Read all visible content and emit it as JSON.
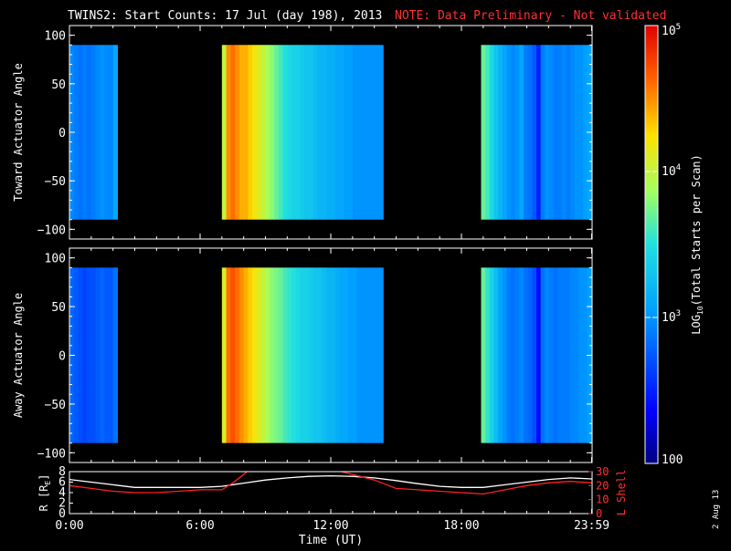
{
  "title": "TWINS2: Start Counts: 17 Jul (day 198), 2013",
  "note": "NOTE: Data Preliminary - Not validated",
  "date_stamp": "2 Aug 13",
  "colorbar": {
    "label_prefix": "LOG",
    "label_sub": "10",
    "label_suffix": "(Total Starts per Scan)",
    "tick_labels": [
      "10^5",
      "10^4",
      "10^3",
      "100"
    ],
    "tick_base": [
      "10",
      "10",
      "10",
      "100"
    ],
    "tick_exp": [
      "5",
      "4",
      "3",
      ""
    ],
    "log_min": 2,
    "log_max": 5
  },
  "colors": {
    "background": "#000000",
    "note": "#ff3030",
    "r_line": "#ffffff",
    "lshell_line": "#ff2020"
  },
  "chart_data": [
    {
      "type": "heatmap",
      "ylabel": "Toward Actuator Angle",
      "ylim": [
        -110,
        110
      ],
      "yticks": [
        100,
        50,
        0,
        -50,
        -100
      ],
      "ytick_labels": [
        "100",
        "50",
        "0",
        "−50",
        "−100"
      ],
      "xlim": [
        0,
        24
      ],
      "angle_range": [
        -90,
        90
      ],
      "segments": [
        {
          "start_hr": 0.0,
          "end_hr": 2.2,
          "log_counts": [
            2.95,
            2.9,
            2.85,
            2.9,
            2.85,
            2.9,
            2.95,
            3.0,
            2.95,
            2.95,
            3.1
          ]
        },
        {
          "start_hr": 7.0,
          "end_hr": 14.4,
          "log_counts": [
            4.0,
            4.5,
            4.6,
            4.5,
            4.4,
            4.4,
            4.3,
            4.2,
            4.1,
            4.0,
            3.9,
            3.8,
            3.7,
            3.6,
            3.5,
            3.45,
            3.4,
            3.4,
            3.35,
            3.3,
            3.3,
            3.25,
            3.2,
            3.2,
            3.15,
            3.15,
            3.1,
            3.1,
            3.05,
            3.05,
            3.0,
            3.0,
            3.0,
            3.0,
            3.0,
            3.0,
            3.0
          ]
        },
        {
          "start_hr": 18.9,
          "end_hr": 23.98,
          "log_counts": [
            3.7,
            3.6,
            3.45,
            3.3,
            3.2,
            3.1,
            3.0,
            2.95,
            3.0,
            3.1,
            2.9,
            2.85,
            2.75,
            2.5,
            2.9,
            3.0,
            2.95,
            2.9,
            2.9,
            2.95,
            2.9,
            2.95,
            3.0,
            3.0,
            3.05,
            3.1
          ]
        }
      ]
    },
    {
      "type": "heatmap",
      "ylabel": "Away Actuator Angle",
      "ylim": [
        -110,
        110
      ],
      "yticks": [
        100,
        50,
        0,
        -50,
        -100
      ],
      "ytick_labels": [
        "100",
        "50",
        "0",
        "−50",
        "−100"
      ],
      "xlim": [
        0,
        24
      ],
      "angle_range": [
        -90,
        90
      ],
      "segments": [
        {
          "start_hr": 0.0,
          "end_hr": 2.2,
          "log_counts": [
            2.8,
            2.75,
            2.7,
            2.65,
            2.7,
            2.7,
            2.75,
            2.8,
            2.75,
            2.75,
            2.85
          ]
        },
        {
          "start_hr": 7.0,
          "end_hr": 14.4,
          "log_counts": [
            4.1,
            4.6,
            4.7,
            4.6,
            4.5,
            4.4,
            4.3,
            4.2,
            4.1,
            4.0,
            3.9,
            3.8,
            3.75,
            3.7,
            3.6,
            3.55,
            3.5,
            3.45,
            3.4,
            3.4,
            3.35,
            3.3,
            3.3,
            3.25,
            3.2,
            3.2,
            3.15,
            3.1,
            3.1,
            3.05,
            3.05,
            3.0,
            3.0,
            3.0,
            3.0,
            3.0,
            3.0
          ]
        },
        {
          "start_hr": 18.9,
          "end_hr": 23.98,
          "log_counts": [
            3.7,
            3.55,
            3.4,
            3.25,
            3.1,
            3.0,
            2.9,
            2.85,
            2.9,
            2.95,
            2.85,
            2.8,
            2.7,
            2.4,
            2.85,
            2.95,
            2.9,
            2.85,
            2.9,
            2.9,
            2.9,
            2.95,
            2.95,
            3.0,
            3.0,
            3.05
          ]
        }
      ]
    },
    {
      "type": "line",
      "ylabel_left": "R [R",
      "ylabel_left_sub": "E",
      "ylabel_left_end": "]",
      "ylabel_right": "L Shell",
      "ylim_left": [
        0,
        8
      ],
      "ylim_right": [
        0,
        30
      ],
      "yticks_left": [
        "0",
        "2",
        "4",
        "6",
        "8"
      ],
      "yticks_right": [
        "0",
        "10",
        "20",
        "30"
      ],
      "xlabel": "Time (UT)",
      "xlim": [
        0,
        24
      ],
      "xticks": [
        0,
        6,
        12,
        18,
        23.98
      ],
      "xtick_labels": [
        "0:00",
        "6:00",
        "12:00",
        "18:00",
        "23:59"
      ],
      "series": [
        {
          "name": "R",
          "x": [
            0,
            1,
            2,
            3,
            4,
            5,
            6,
            7,
            8,
            9,
            10,
            11,
            12,
            13,
            14,
            15,
            16,
            17,
            18,
            19,
            20,
            21,
            22,
            23,
            24
          ],
          "y": [
            6.5,
            6.0,
            5.5,
            5.0,
            5.0,
            5.0,
            5.0,
            5.2,
            5.8,
            6.4,
            6.8,
            7.1,
            7.2,
            7.1,
            6.8,
            6.3,
            5.7,
            5.2,
            5.0,
            5.0,
            5.5,
            6.0,
            6.5,
            6.8,
            6.6
          ]
        },
        {
          "name": "L Shell",
          "x": [
            0,
            1,
            2,
            3,
            4,
            5,
            6,
            7,
            7.5,
            8,
            8.3,
            9,
            10,
            12,
            14,
            15,
            16,
            17,
            18,
            19,
            20,
            21,
            22,
            23,
            24
          ],
          "y": [
            20,
            18,
            16,
            15,
            15,
            16,
            17,
            17,
            22,
            28,
            32,
            32,
            32,
            32,
            24,
            18,
            17,
            16,
            15,
            14,
            17,
            20,
            22,
            23,
            22
          ]
        }
      ]
    }
  ]
}
